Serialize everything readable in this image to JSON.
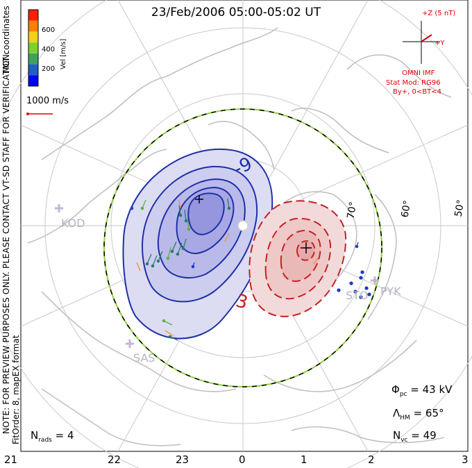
{
  "title": "23/Feb/2006 05:00-05:02 UT",
  "coordinates_label": "MLT coordinates",
  "velocity_scale": {
    "label": "Vel [m/s]",
    "ticks": [
      "600",
      "400",
      "200"
    ],
    "colors": [
      "#0000ff",
      "#2060c0",
      "#40a060",
      "#80d030",
      "#f0d020",
      "#ff8000",
      "#ff2000"
    ]
  },
  "reference_vector": "1000 m/s",
  "imf": {
    "plus_z": "+Z (5 nT)",
    "plus_y": "+Y",
    "source": "OMNI IMF",
    "model": "Stat Mod: RG96",
    "condition": "By+, 0<BT<4"
  },
  "latitude_labels": [
    "70°",
    "60°",
    "50°"
  ],
  "contour_labels": [
    "-9",
    "3"
  ],
  "stations": [
    "KOD",
    "SAS",
    "PYK",
    "STO"
  ],
  "watermark": "NOTE: FOR PREVIEW PURPOSES ONLY. PLEASE CONTACT VT-SD STAFF FOR VERIFICATION.",
  "fit_info": "FitOrder: 8, mapEX format",
  "stats": {
    "phi_pc": "43 kV",
    "lambda_hm": "65°",
    "n_vc": "49",
    "n_rads": "4"
  },
  "mlt_hours": [
    "21",
    "22",
    "23",
    "0",
    "1",
    "2",
    "3"
  ],
  "colors": {
    "negative_cell": "#1f2fa8",
    "positive_cell": "#c82020",
    "coastline": "#c0c0c0",
    "grid": "#c8c8c8",
    "boundary": "#90d040"
  }
}
